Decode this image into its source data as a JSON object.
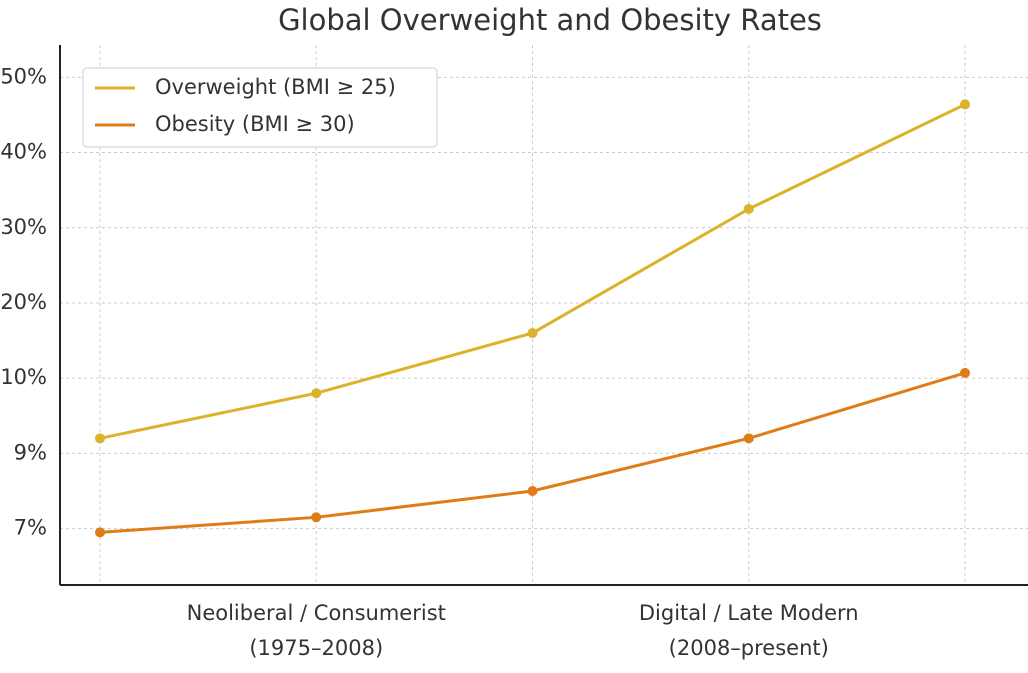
{
  "chart_data": {
    "type": "line",
    "title": "Global Overweight and Obesity Rates",
    "categories": [
      null,
      "Neoliberal / Consumerist\n(1975–2008)",
      null,
      "Digital / Late Modern\n(2008–present)",
      null
    ],
    "series": [
      {
        "name": "Overweight (BMI ≥ 25)",
        "color": "#dcb22a",
        "values": [
          9.2,
          9.8,
          16,
          32.5,
          46.4
        ]
      },
      {
        "name": "Obesity (BMI ≥ 30)",
        "color": "#e07c18",
        "values": [
          6.9,
          7.3,
          8.0,
          9.2,
          10.7
        ]
      }
    ],
    "ylim": [
      5.5,
      54.3
    ],
    "yticks": [
      {
        "value": 7,
        "label": "7%"
      },
      {
        "value": 9,
        "label": "9%"
      },
      {
        "value": 10,
        "label": "10%"
      },
      {
        "value": 20,
        "label": "20%"
      },
      {
        "value": 30,
        "label": "30%"
      },
      {
        "value": 40,
        "label": "40%"
      },
      {
        "value": 50,
        "label": "50%"
      }
    ],
    "grid": true,
    "legend": "upper-left"
  }
}
